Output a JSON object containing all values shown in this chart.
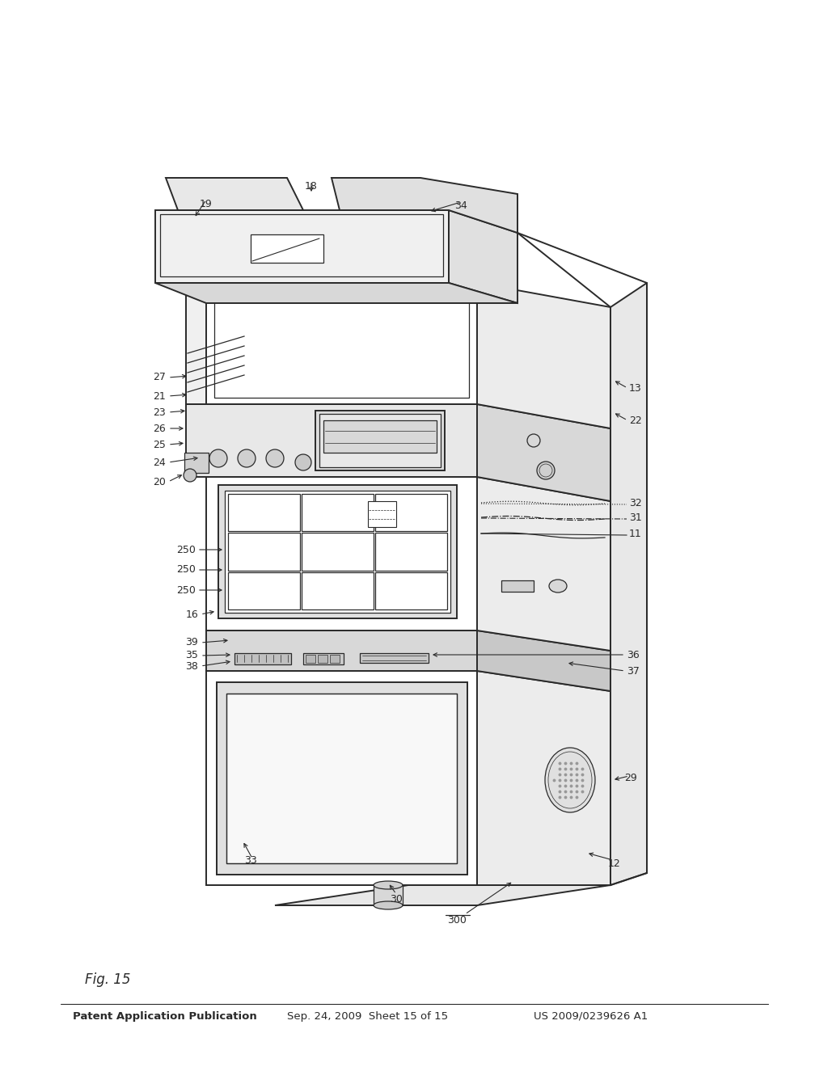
{
  "bg_color": "#ffffff",
  "line_color": "#2a2a2a",
  "header_left": "Patent Application Publication",
  "header_mid": "Sep. 24, 2009  Sheet 15 of 15",
  "header_right": "US 2009/0239626 A1",
  "fig_label": "Fig. 15"
}
